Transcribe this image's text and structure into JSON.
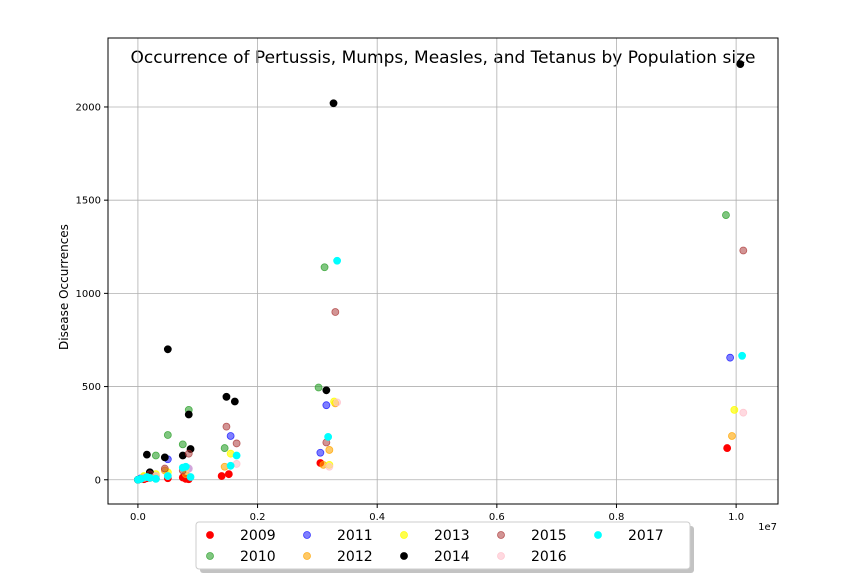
{
  "chart_data": {
    "type": "scatter",
    "title": "Occurrence of Pertussis, Mumps, Measles, and Tetanus by Population size",
    "xlabel": "",
    "ylabel": "Disease Occurrences",
    "x_offset_text": "1e7",
    "xlim": [
      -0.05,
      1.07
    ],
    "ylim": [
      -130,
      2370
    ],
    "x_ticks": [
      0.0,
      0.2,
      0.4,
      0.6,
      0.8,
      1.0
    ],
    "x_tick_labels": [
      "0.0",
      "0.2",
      "0.4",
      "0.6",
      "0.8",
      "1.0"
    ],
    "y_ticks": [
      0,
      500,
      1000,
      1500,
      2000
    ],
    "y_tick_labels": [
      "0",
      "500",
      "1000",
      "1500",
      "2000"
    ],
    "grid": true,
    "legend_placement": "bottom-center",
    "series": [
      {
        "name": "2009",
        "color": "#ff0000",
        "alpha": 1.0,
        "points": [
          [
            0.0,
            0
          ],
          [
            0.005,
            5
          ],
          [
            0.01,
            3
          ],
          [
            0.015,
            8
          ],
          [
            0.02,
            10
          ],
          [
            0.03,
            6
          ],
          [
            0.05,
            8
          ],
          [
            0.075,
            12
          ],
          [
            0.08,
            5
          ],
          [
            0.085,
            3
          ],
          [
            0.14,
            20
          ],
          [
            0.152,
            30
          ],
          [
            0.305,
            90
          ],
          [
            0.985,
            170
          ]
        ]
      },
      {
        "name": "2010",
        "color": "#2ca02c",
        "alpha": 0.6,
        "points": [
          [
            0.005,
            5
          ],
          [
            0.01,
            10
          ],
          [
            0.02,
            20
          ],
          [
            0.03,
            130
          ],
          [
            0.05,
            240
          ],
          [
            0.075,
            190
          ],
          [
            0.085,
            375
          ],
          [
            0.145,
            170
          ],
          [
            0.302,
            495
          ],
          [
            0.312,
            1140
          ],
          [
            0.983,
            1420
          ]
        ]
      },
      {
        "name": "2011",
        "color": "#0000ff",
        "alpha": 0.5,
        "points": [
          [
            0.005,
            8
          ],
          [
            0.015,
            15
          ],
          [
            0.03,
            20
          ],
          [
            0.05,
            110
          ],
          [
            0.085,
            60
          ],
          [
            0.155,
            235
          ],
          [
            0.305,
            145
          ],
          [
            0.315,
            400
          ],
          [
            0.99,
            655
          ]
        ]
      },
      {
        "name": "2012",
        "color": "#ffa500",
        "alpha": 0.6,
        "points": [
          [
            0.01,
            15
          ],
          [
            0.02,
            20
          ],
          [
            0.045,
            50
          ],
          [
            0.08,
            30
          ],
          [
            0.145,
            70
          ],
          [
            0.31,
            80
          ],
          [
            0.32,
            160
          ],
          [
            0.33,
            410
          ],
          [
            0.993,
            235
          ]
        ]
      },
      {
        "name": "2013",
        "color": "#ffff00",
        "alpha": 0.7,
        "points": [
          [
            0.01,
            20
          ],
          [
            0.03,
            30
          ],
          [
            0.05,
            40
          ],
          [
            0.08,
            60
          ],
          [
            0.155,
            140
          ],
          [
            0.32,
            80
          ],
          [
            0.328,
            420
          ],
          [
            0.997,
            375
          ]
        ]
      },
      {
        "name": "2014",
        "color": "#000000",
        "alpha": 1.0,
        "points": [
          [
            0.0,
            0
          ],
          [
            0.015,
            135
          ],
          [
            0.02,
            40
          ],
          [
            0.045,
            120
          ],
          [
            0.05,
            700
          ],
          [
            0.075,
            130
          ],
          [
            0.085,
            350
          ],
          [
            0.088,
            165
          ],
          [
            0.148,
            445
          ],
          [
            0.162,
            420
          ],
          [
            0.315,
            480
          ],
          [
            0.327,
            2020
          ],
          [
            1.007,
            2230
          ]
        ]
      },
      {
        "name": "2015",
        "color": "#a52a2a",
        "alpha": 0.5,
        "points": [
          [
            0.01,
            10
          ],
          [
            0.02,
            30
          ],
          [
            0.045,
            60
          ],
          [
            0.075,
            50
          ],
          [
            0.085,
            140
          ],
          [
            0.148,
            285
          ],
          [
            0.165,
            195
          ],
          [
            0.315,
            200
          ],
          [
            0.33,
            900
          ],
          [
            1.012,
            1230
          ]
        ]
      },
      {
        "name": "2016",
        "color": "#ffc0cb",
        "alpha": 0.6,
        "points": [
          [
            0.01,
            10
          ],
          [
            0.03,
            20
          ],
          [
            0.05,
            20
          ],
          [
            0.085,
            60
          ],
          [
            0.165,
            85
          ],
          [
            0.32,
            70
          ],
          [
            0.333,
            415
          ],
          [
            1.012,
            360
          ]
        ]
      },
      {
        "name": "2017",
        "color": "#00ffff",
        "alpha": 1.0,
        "points": [
          [
            0.0,
            0
          ],
          [
            0.005,
            5
          ],
          [
            0.015,
            15
          ],
          [
            0.02,
            10
          ],
          [
            0.03,
            5
          ],
          [
            0.05,
            20
          ],
          [
            0.075,
            65
          ],
          [
            0.08,
            70
          ],
          [
            0.088,
            15
          ],
          [
            0.155,
            75
          ],
          [
            0.165,
            130
          ],
          [
            0.318,
            230
          ],
          [
            0.333,
            1175
          ],
          [
            1.01,
            665
          ]
        ]
      }
    ],
    "legend_order": [
      "2009",
      "2011",
      "2013",
      "2015",
      "2017",
      "2010",
      "2012",
      "2014",
      "2016"
    ]
  }
}
